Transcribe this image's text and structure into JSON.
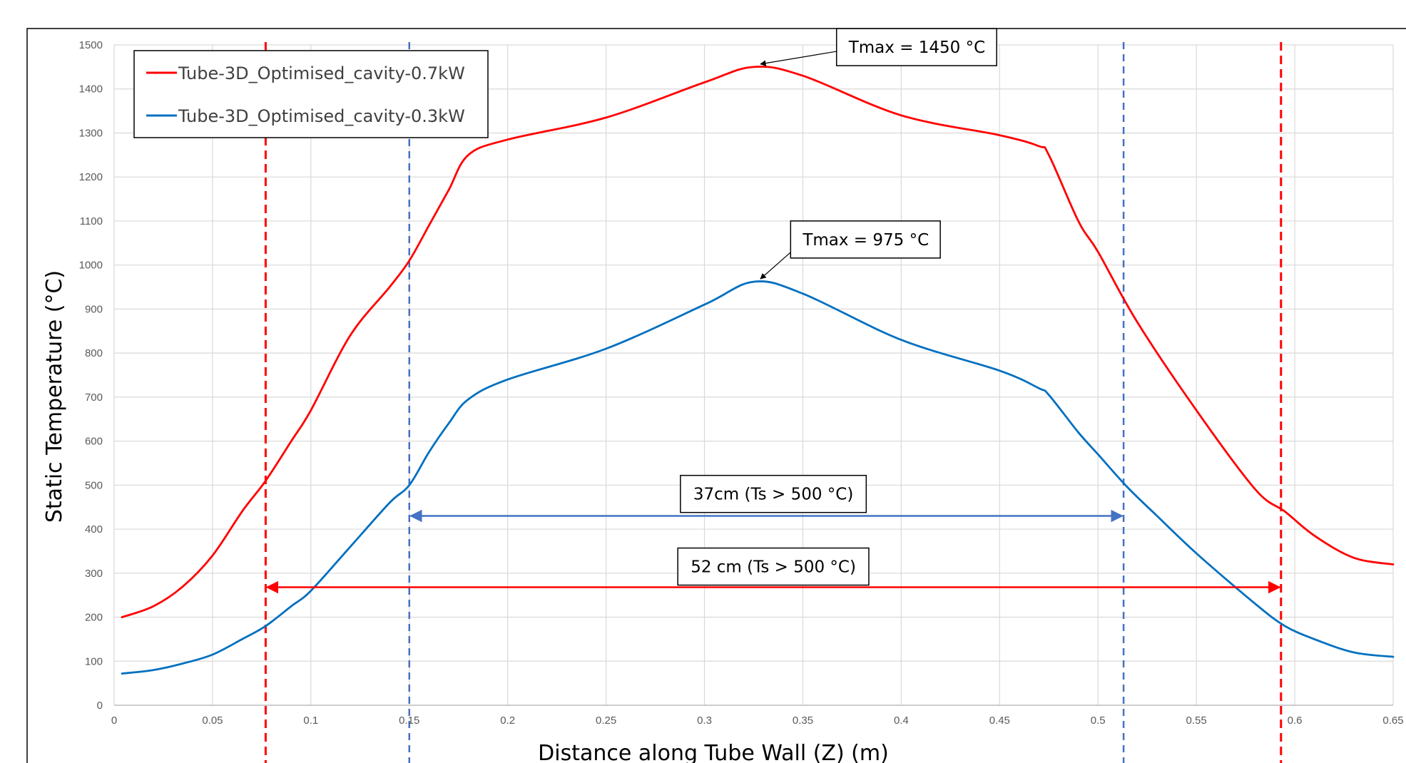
{
  "chart_data": {
    "type": "line",
    "title": "",
    "xlabel": "Distance along Tube Wall (Z) (m)",
    "ylabel": "Static Temperature (°C)",
    "xlim": [
      0,
      0.65
    ],
    "ylim": [
      0,
      1500
    ],
    "x_ticks": [
      0,
      0.05,
      0.1,
      0.15,
      0.2,
      0.25,
      0.3,
      0.35,
      0.4,
      0.45,
      0.5,
      0.55,
      0.6,
      0.65
    ],
    "x_tick_labels": [
      "0",
      "0.05",
      "0.1",
      "0.15",
      "0.2",
      "0.25",
      "0.3",
      "0.35",
      "0.4",
      "0.45",
      "0.5",
      "0.55",
      "0.6",
      "0.65"
    ],
    "y_ticks": [
      0,
      100,
      200,
      300,
      400,
      500,
      600,
      700,
      800,
      900,
      1000,
      1100,
      1200,
      1300,
      1400,
      1500
    ],
    "y_tick_labels": [
      "0",
      "100",
      "200",
      "300",
      "400",
      "500",
      "600",
      "700",
      "800",
      "900",
      "1000",
      "1100",
      "1200",
      "1300",
      "1400",
      "1500"
    ],
    "grid": true,
    "legend_position": "top-left",
    "series": [
      {
        "name": "Tube-3D_Optimised_cavity-0.7kW",
        "color": "#ff0000",
        "x": [
          0.004,
          0.02,
          0.035,
          0.05,
          0.065,
          0.077,
          0.09,
          0.1,
          0.12,
          0.14,
          0.15,
          0.16,
          0.17,
          0.18,
          0.2,
          0.25,
          0.3,
          0.325,
          0.35,
          0.4,
          0.45,
          0.47,
          0.475,
          0.49,
          0.5,
          0.52,
          0.55,
          0.58,
          0.595,
          0.61,
          0.63,
          0.65
        ],
        "y": [
          200,
          225,
          270,
          340,
          440,
          510,
          600,
          670,
          840,
          950,
          1010,
          1090,
          1170,
          1250,
          1285,
          1335,
          1415,
          1450,
          1430,
          1340,
          1295,
          1270,
          1250,
          1100,
          1030,
          870,
          670,
          490,
          440,
          385,
          335,
          320
        ]
      },
      {
        "name": "Tube-3D_Optimised_cavity-0.3kW",
        "color": "#0070c0",
        "x": [
          0.004,
          0.02,
          0.035,
          0.05,
          0.065,
          0.077,
          0.09,
          0.1,
          0.12,
          0.14,
          0.15,
          0.16,
          0.17,
          0.18,
          0.2,
          0.25,
          0.3,
          0.325,
          0.35,
          0.4,
          0.45,
          0.47,
          0.475,
          0.49,
          0.5,
          0.515,
          0.53,
          0.55,
          0.58,
          0.595,
          0.61,
          0.63,
          0.65
        ],
        "y": [
          72,
          80,
          95,
          115,
          150,
          180,
          225,
          260,
          360,
          460,
          500,
          575,
          640,
          695,
          740,
          810,
          910,
          962,
          935,
          830,
          760,
          720,
          705,
          620,
          570,
          495,
          430,
          345,
          230,
          180,
          150,
          120,
          110
        ]
      }
    ],
    "vertical_markers": [
      {
        "x": 0.077,
        "color": "#ff0000",
        "style": "dashed"
      },
      {
        "x": 0.15,
        "color": "#4472c4",
        "style": "dashed"
      },
      {
        "x": 0.513,
        "color": "#4472c4",
        "style": "dashed"
      },
      {
        "x": 0.593,
        "color": "#ff0000",
        "style": "dashed"
      }
    ],
    "span_arrows": [
      {
        "x_start": 0.15,
        "x_end": 0.513,
        "y": 430,
        "color": "#4472c4",
        "label": "37cm  (Ts > 500 °C)",
        "label_x": 0.335,
        "label_y": 480
      },
      {
        "x_start": 0.077,
        "x_end": 0.593,
        "y": 268,
        "color": "#ff0000",
        "label": "52 cm (Ts > 500 °C)",
        "label_x": 0.335,
        "label_y": 315
      }
    ],
    "callouts": [
      {
        "label": "Tmax = 1450 °C",
        "point_x": 0.327,
        "point_y": 1450,
        "box_x": 0.408,
        "box_y": 1495
      },
      {
        "label": "Tmax = 975 °C",
        "point_x": 0.327,
        "point_y": 962,
        "box_x": 0.382,
        "box_y": 1058
      }
    ]
  }
}
